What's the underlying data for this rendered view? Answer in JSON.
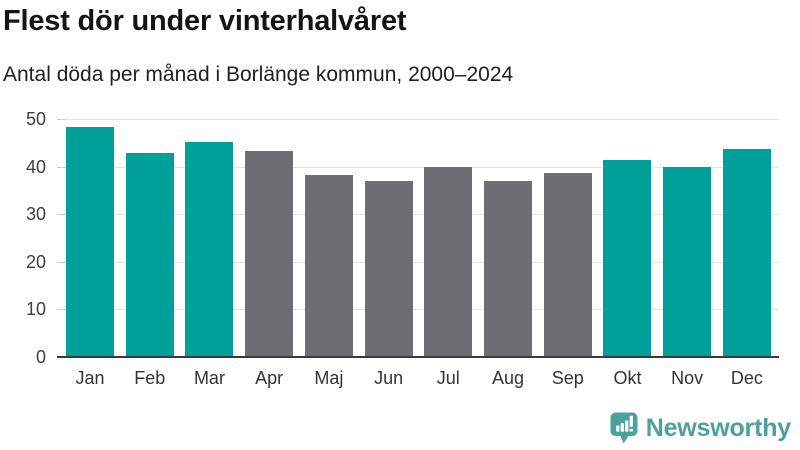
{
  "header": {
    "title": "Flest dör under vinterhalvåret",
    "subtitle": "Antal döda per månad i Borlänge kommun, 2000–2024"
  },
  "chart_data": {
    "type": "bar",
    "title": "Flest dör under vinterhalvåret",
    "subtitle": "Antal döda per månad i Borlänge kommun, 2000–2024",
    "categories": [
      "Jan",
      "Feb",
      "Mar",
      "Apr",
      "Maj",
      "Jun",
      "Jul",
      "Aug",
      "Sep",
      "Okt",
      "Nov",
      "Dec"
    ],
    "values": [
      48.3,
      42.8,
      45.1,
      43.3,
      38.3,
      37.0,
      40.0,
      36.9,
      38.6,
      41.3,
      40.0,
      43.7
    ],
    "bar_colors": [
      "#00a09a",
      "#00a09a",
      "#00a09a",
      "#6e6e72",
      "#6e6e72",
      "#6e6e72",
      "#6e6e72",
      "#6e6e72",
      "#6e6e72",
      "#00a09a",
      "#00a09a",
      "#00a09a"
    ],
    "highlight_color": "#00a09a",
    "base_color": "#6e6e72",
    "xlabel": "",
    "ylabel": "",
    "ylim": [
      0,
      50
    ],
    "yticks": [
      0,
      10,
      20,
      30,
      40,
      50
    ],
    "grid": true,
    "legend": "none"
  },
  "branding": {
    "logo_text": "Newsworthy",
    "logo_color": "#4ba29c"
  }
}
